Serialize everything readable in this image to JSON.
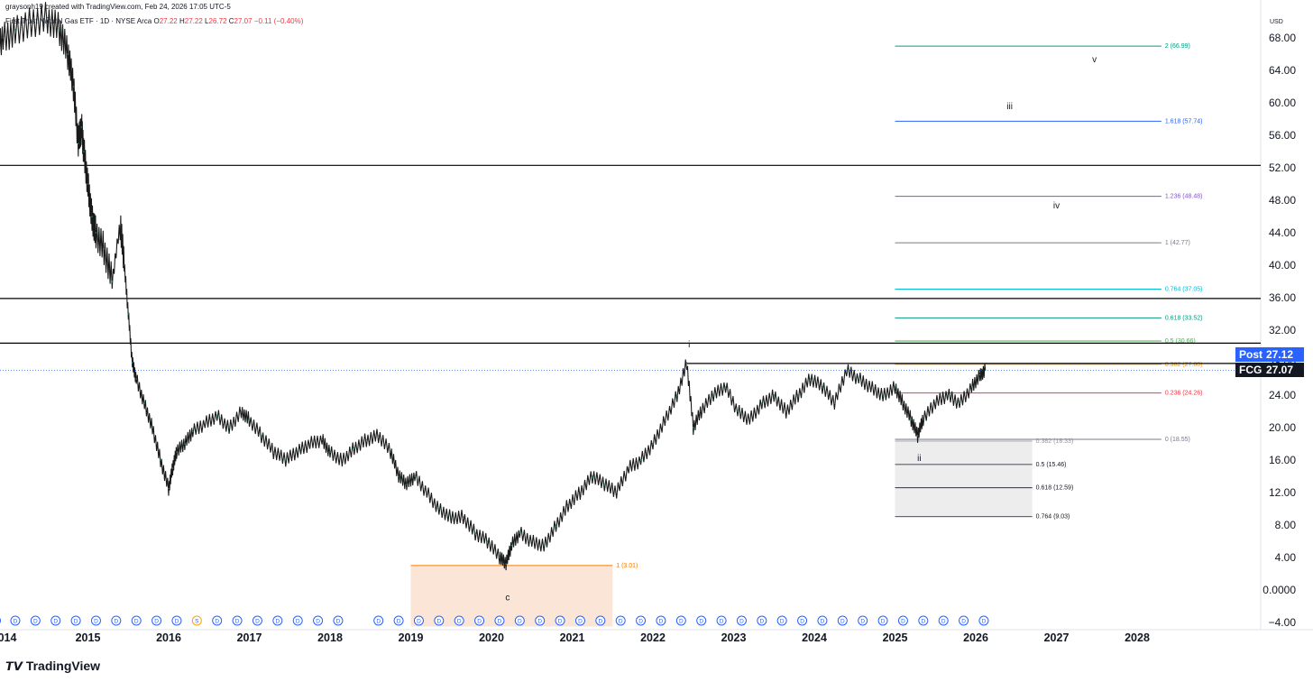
{
  "header": {
    "credit": "graysonh19 created with TradingView.com, Feb 24, 2026 17:05 UTC-5",
    "symbol_line": "First Trust Natural Gas ETF · 1D · NYSE Arca",
    "ohlc": {
      "o_label": "O",
      "o": "27.22",
      "h_label": "H",
      "h": "27.22",
      "l_label": "L",
      "l": "26.72",
      "c_label": "C",
      "c": "27.07",
      "change": "−0.11 (−0.40%)"
    }
  },
  "currency": "USD",
  "footer": {
    "logo_text": "TradingView"
  },
  "tags": {
    "post_label": "Post",
    "post_value": "27.12",
    "fcg_label": "FCG",
    "fcg_value": "27.07"
  },
  "colors": {
    "candle": "#1a1a1a",
    "accent": "#089981",
    "post_bg": "#2962ff",
    "fcg_bg": "#131722",
    "dividend": "#2962ff",
    "split": "#f7a600"
  },
  "chart_data": {
    "type": "line",
    "title": "",
    "xlabel": "",
    "ylabel": "",
    "ylim": [
      -4,
      68
    ],
    "xlim": [
      2013.85,
      2029.1
    ],
    "y_ticks": [
      "68.00",
      "64.00",
      "60.00",
      "56.00",
      "52.00",
      "48.00",
      "44.00",
      "40.00",
      "36.00",
      "32.00",
      "28.00",
      "24.00",
      "20.00",
      "16.00",
      "12.00",
      "8.00",
      "4.00",
      "0.0000",
      "−4.00"
    ],
    "y_tick_values": [
      68,
      64,
      60,
      56,
      52,
      48,
      44,
      40,
      36,
      32,
      28,
      24,
      20,
      16,
      12,
      8,
      4,
      0,
      -4
    ],
    "x_ticks": [
      "014",
      "2015",
      "2016",
      "2017",
      "2018",
      "2019",
      "2020",
      "2021",
      "2022",
      "2023",
      "2024",
      "2025",
      "2026",
      "2027",
      "2028"
    ],
    "x_tick_values": [
      2014,
      2015,
      2016,
      2017,
      2018,
      2019,
      2020,
      2021,
      2022,
      2023,
      2024,
      2025,
      2026,
      2027,
      2028
    ],
    "series": [
      {
        "x": [
          2013.86,
          2013.95,
          2014.1,
          2014.3,
          2014.5,
          2014.65,
          2014.75,
          2014.82,
          2014.88,
          2014.92,
          2014.95,
          2015.0,
          2015.05,
          2015.1,
          2015.2,
          2015.3,
          2015.4,
          2015.45,
          2015.5,
          2015.55,
          2015.6,
          2015.7,
          2015.8,
          2015.9,
          2016.0,
          2016.05,
          2016.1,
          2016.2,
          2016.3,
          2016.45,
          2016.6,
          2016.75,
          2016.9,
          2017.0,
          2017.15,
          2017.3,
          2017.45,
          2017.6,
          2017.75,
          2017.9,
          2018.0,
          2018.15,
          2018.3,
          2018.45,
          2018.6,
          2018.75,
          2018.85,
          2018.95,
          2019.05,
          2019.2,
          2019.35,
          2019.5,
          2019.65,
          2019.8,
          2019.95,
          2020.1,
          2020.18,
          2020.25,
          2020.35,
          2020.5,
          2020.65,
          2020.8,
          2020.95,
          2021.1,
          2021.25,
          2021.4,
          2021.55,
          2021.7,
          2021.85,
          2022.0,
          2022.15,
          2022.3,
          2022.42,
          2022.5,
          2022.6,
          2022.75,
          2022.9,
          2023.05,
          2023.2,
          2023.35,
          2023.5,
          2023.65,
          2023.8,
          2023.95,
          2024.1,
          2024.25,
          2024.4,
          2024.55,
          2024.7,
          2024.85,
          2025.0,
          2025.1,
          2025.2,
          2025.28,
          2025.35,
          2025.5,
          2025.65,
          2025.8,
          2025.95,
          2026.05,
          2026.12
        ],
        "values": [
          67.5,
          68,
          69,
          70,
          70.5,
          69,
          66,
          62,
          55,
          57,
          54,
          50,
          46,
          44,
          42,
          38,
          45,
          40,
          34,
          28,
          26,
          23,
          20,
          16,
          12.5,
          15,
          17,
          18,
          19.5,
          20.5,
          21.5,
          20,
          22,
          21,
          19,
          17,
          16,
          17,
          18,
          18.5,
          17,
          16,
          17.5,
          18.5,
          19,
          17,
          14,
          13,
          14,
          12,
          10,
          9,
          9,
          7,
          6,
          4,
          3.2,
          5.5,
          7,
          6,
          5.5,
          8,
          10.5,
          12,
          14,
          13,
          12,
          15,
          16,
          18,
          21,
          24,
          28,
          20,
          22,
          24,
          25,
          22,
          21,
          23,
          24,
          22,
          24,
          26,
          25,
          23,
          27,
          26,
          25,
          24,
          25,
          23,
          21,
          19,
          21,
          23,
          24,
          23,
          25,
          26.5,
          27.07
        ]
      }
    ],
    "horizontal_lines": [
      52.3,
      35.9,
      30.4,
      27.9
    ],
    "last_close_line": 27.07,
    "fib_extension": {
      "levels": [
        {
          "label": "2 (66.99)",
          "value": 66.99,
          "color": "#089981"
        },
        {
          "label": "1.618 (57.74)",
          "value": 57.74,
          "color": "#2962ff"
        },
        {
          "label": "1.236 (48.48)",
          "value": 48.48,
          "color": "#7e57c2"
        },
        {
          "label": "1 (42.77)",
          "value": 42.77,
          "color": "#787b86"
        },
        {
          "label": "0.764 (37.05)",
          "value": 37.05,
          "color": "#00bcd4"
        },
        {
          "label": "0.618 (33.52)",
          "value": 33.52,
          "color": "#089981"
        },
        {
          "label": "0.5 (30.66)",
          "value": 30.66,
          "color": "#4caf50"
        },
        {
          "label": "0.382 (27.80)",
          "value": 27.8,
          "color": "#ff9800"
        },
        {
          "label": "0.236 (24.26)",
          "value": 24.26,
          "color": "#f23645"
        },
        {
          "label": "0 (18.55)",
          "value": 18.55,
          "color": "#787b86"
        }
      ]
    },
    "fib_retracement": {
      "levels": [
        {
          "label": "0.382 (18.33)",
          "value": 18.33,
          "color": "#9598a1"
        },
        {
          "label": "0.5 (15.46)",
          "value": 15.46,
          "color": "#131722"
        },
        {
          "label": "0.618 (12.59)",
          "value": 12.59,
          "color": "#131722"
        },
        {
          "label": "0.764 (9.03)",
          "value": 9.03,
          "color": "#131722"
        }
      ]
    },
    "target_box": {
      "label": "1 (3.01)",
      "value": 3.01,
      "color": "#f57c00"
    },
    "annotations": [
      {
        "text": "v",
        "x": 2027.47,
        "y": 65
      },
      {
        "text": "iii",
        "x": 2026.42,
        "y": 59.2
      },
      {
        "text": "iv",
        "x": 2027.0,
        "y": 47
      },
      {
        "text": "i",
        "x": 2022.45,
        "y": 29.9
      },
      {
        "text": "ii",
        "x": 2025.3,
        "y": 15.9
      },
      {
        "text": "c",
        "x": 2020.2,
        "y": -1.3
      }
    ],
    "dividend_marker": "D",
    "split_marker": "S",
    "dividend_x": [
      2013.86,
      2014.1,
      2014.35,
      2014.6,
      2014.85,
      2015.1,
      2015.35,
      2015.6,
      2015.85,
      2016.1,
      2016.6,
      2016.85,
      2017.1,
      2017.35,
      2017.6,
      2017.85,
      2018.1,
      2018.6,
      2018.85,
      2019.1,
      2019.35,
      2019.6,
      2019.85,
      2020.1,
      2020.35,
      2020.6,
      2020.85,
      2021.1,
      2021.35,
      2021.6,
      2021.85,
      2022.1,
      2022.35,
      2022.6,
      2022.85,
      2023.1,
      2023.35,
      2023.6,
      2023.85,
      2024.1,
      2024.35,
      2024.6,
      2024.85,
      2025.1,
      2025.35,
      2025.6,
      2025.85,
      2026.1
    ],
    "split_x": [
      2016.35
    ]
  }
}
